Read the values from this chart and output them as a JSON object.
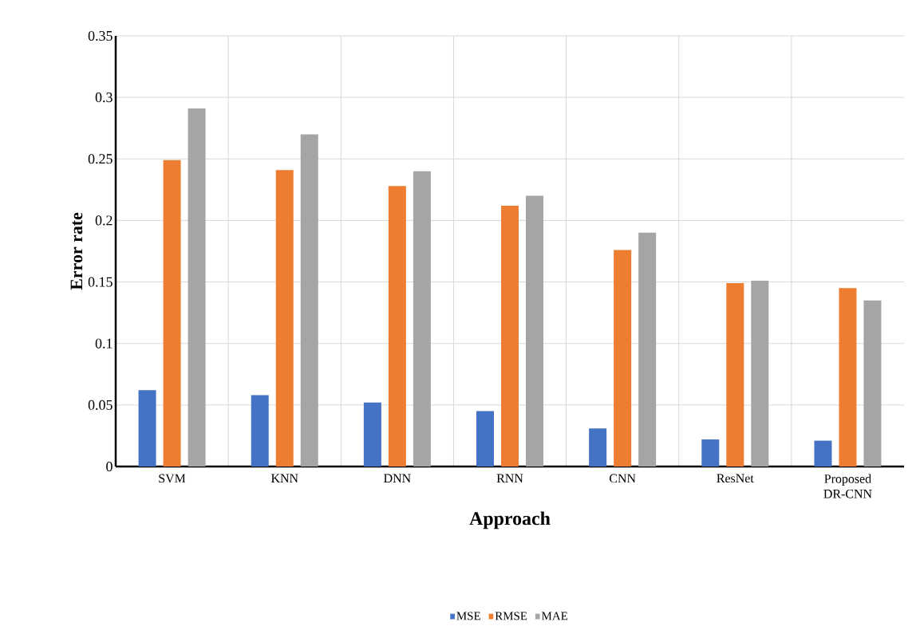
{
  "chart_data": {
    "type": "bar",
    "xlabel": "Approach",
    "ylabel": "Error rate",
    "categories": [
      "SVM",
      "KNN",
      "DNN",
      "RNN",
      "CNN",
      "ResNet",
      "Proposed DR-CNN"
    ],
    "series": [
      {
        "name": "MSE",
        "color": "#4472c4",
        "values": [
          0.062,
          0.058,
          0.052,
          0.045,
          0.031,
          0.022,
          0.021
        ]
      },
      {
        "name": "RMSE",
        "color": "#ed7d31",
        "values": [
          0.249,
          0.241,
          0.228,
          0.212,
          0.176,
          0.149,
          0.145
        ]
      },
      {
        "name": "MAE",
        "color": "#a5a5a5",
        "values": [
          0.291,
          0.27,
          0.24,
          0.22,
          0.19,
          0.151,
          0.135
        ]
      }
    ],
    "ylim": [
      0,
      0.35
    ],
    "yticks": [
      0,
      0.05,
      0.1,
      0.15,
      0.2,
      0.25,
      0.3,
      0.35
    ],
    "grid": true,
    "legend": "bottom"
  }
}
